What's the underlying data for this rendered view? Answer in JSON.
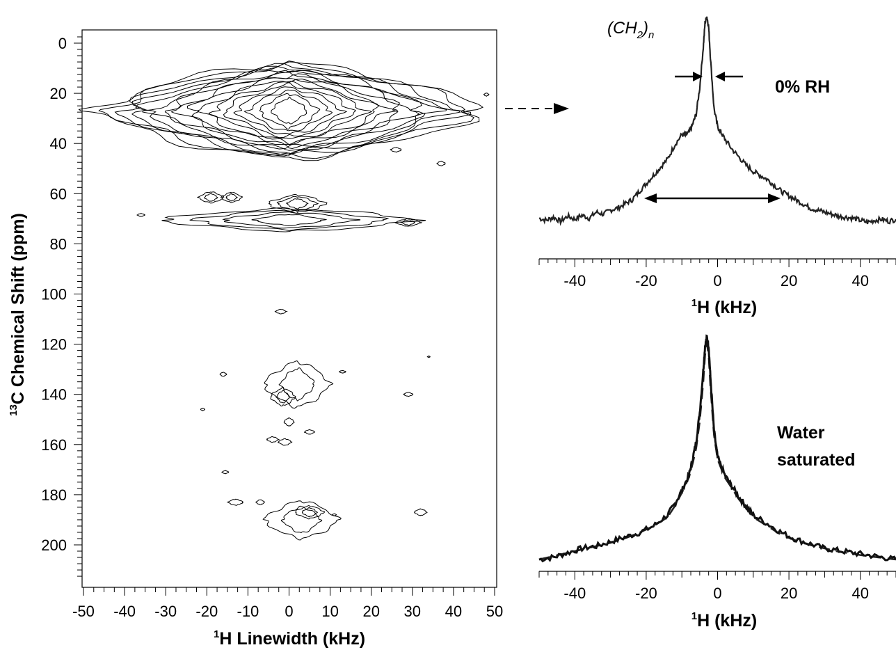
{
  "chart_data": [
    {
      "type": "contour",
      "xlabel_sup": "1",
      "xlabel": "H Linewidth (kHz)",
      "ylabel_sup": "13",
      "ylabel": "C Chemical Shift (ppm)",
      "xlim": [
        -50,
        50
      ],
      "ylim": [
        214,
        -5
      ],
      "y_inverted": true,
      "xticks": [
        -50,
        -40,
        -30,
        -20,
        -10,
        0,
        10,
        20,
        30,
        40,
        50
      ],
      "xtick_labels": [
        "-50",
        "-40",
        "-30",
        "-20",
        "-10",
        "0",
        "10",
        "20",
        "30",
        "40",
        "50"
      ],
      "yticks": [
        0,
        20,
        40,
        60,
        80,
        100,
        120,
        140,
        160,
        180,
        200
      ],
      "ytick_labels": [
        "0",
        "20",
        "40",
        "60",
        "80",
        "100",
        "120",
        "140",
        "160",
        "180",
        "200"
      ],
      "peaks": [
        {
          "x": 0,
          "y": 27,
          "rx": 47,
          "ry": 19,
          "levels": 16
        },
        {
          "x": -19,
          "y": 61.5,
          "rx": 3,
          "ry": 2.2,
          "levels": 2
        },
        {
          "x": -14,
          "y": 61.5,
          "rx": 2.5,
          "ry": 2,
          "levels": 2
        },
        {
          "x": 2,
          "y": 64,
          "rx": 7,
          "ry": 3.5,
          "levels": 3
        },
        {
          "x": 0,
          "y": 70.5,
          "rx": 31,
          "ry": 4.5,
          "levels": 4
        },
        {
          "x": 29,
          "y": 71.5,
          "rx": 3,
          "ry": 1.5,
          "levels": 2
        },
        {
          "x": -36,
          "y": 68.5,
          "rx": 0.9,
          "ry": 0.6,
          "levels": 1
        },
        {
          "x": 37,
          "y": 48,
          "rx": 1,
          "ry": 0.9,
          "levels": 1
        },
        {
          "x": 26,
          "y": 42.5,
          "rx": 1.3,
          "ry": 0.9,
          "levels": 1
        },
        {
          "x": 48,
          "y": 20.5,
          "rx": 0.6,
          "ry": 0.6,
          "levels": 1
        },
        {
          "x": -2,
          "y": 107,
          "rx": 1.3,
          "ry": 0.9,
          "levels": 1
        },
        {
          "x": 2,
          "y": 136,
          "rx": 8,
          "ry": 9,
          "levels": 2
        },
        {
          "x": -1.5,
          "y": 141,
          "rx": 3,
          "ry": 3.5,
          "levels": 2
        },
        {
          "x": 0,
          "y": 151,
          "rx": 1.2,
          "ry": 1.6,
          "levels": 1
        },
        {
          "x": -16,
          "y": 132,
          "rx": 0.8,
          "ry": 0.8,
          "levels": 1
        },
        {
          "x": 13,
          "y": 131,
          "rx": 0.8,
          "ry": 0.5,
          "levels": 1
        },
        {
          "x": 29,
          "y": 140,
          "rx": 1.1,
          "ry": 0.8,
          "levels": 1
        },
        {
          "x": 34,
          "y": 125,
          "rx": 0.3,
          "ry": 0.3,
          "levels": 1
        },
        {
          "x": -21,
          "y": 146,
          "rx": 0.5,
          "ry": 0.5,
          "levels": 1
        },
        {
          "x": -4,
          "y": 158,
          "rx": 1.4,
          "ry": 1.1,
          "levels": 1
        },
        {
          "x": -1,
          "y": 159,
          "rx": 1.6,
          "ry": 1.3,
          "levels": 1
        },
        {
          "x": 5,
          "y": 155,
          "rx": 1.2,
          "ry": 0.9,
          "levels": 1
        },
        {
          "x": -15.5,
          "y": 171,
          "rx": 0.8,
          "ry": 0.6,
          "levels": 1
        },
        {
          "x": -13,
          "y": 183,
          "rx": 1.8,
          "ry": 1.2,
          "levels": 1
        },
        {
          "x": -7,
          "y": 183,
          "rx": 1,
          "ry": 1,
          "levels": 1
        },
        {
          "x": 3,
          "y": 190,
          "rx": 9,
          "ry": 7.5,
          "levels": 2
        },
        {
          "x": 5,
          "y": 187,
          "rx": 3.5,
          "ry": 2.5,
          "levels": 2
        },
        {
          "x": 32,
          "y": 187,
          "rx": 1.5,
          "ry": 1.3,
          "levels": 1
        },
        {
          "x": 11,
          "y": 188,
          "rx": 0.5,
          "ry": 0.4,
          "levels": 1
        }
      ]
    },
    {
      "type": "line",
      "condition_label": "0% RH",
      "peak_label_main": "(CH",
      "peak_label_sub": "2",
      "peak_label_close": ")",
      "peak_label_n": "n",
      "xlabel_sup": "1",
      "xlabel": "H (kHz)",
      "xlim": [
        -50,
        50
      ],
      "xticks": [
        -40,
        -20,
        0,
        20,
        40
      ],
      "xtick_labels": [
        "-40",
        "-20",
        "0",
        "20",
        "40"
      ],
      "series": [
        {
          "style": "solid",
          "x": [
            -50,
            -48,
            -46,
            -44,
            -42,
            -40,
            -38,
            -36,
            -34,
            -32,
            -30,
            -28,
            -26,
            -24,
            -22,
            -20,
            -18,
            -16,
            -14,
            -12,
            -10,
            -9,
            -8,
            -7,
            -6,
            -5,
            -4,
            -3.5,
            -3,
            -2.5,
            -2,
            -1,
            0,
            1,
            2,
            4,
            6,
            8,
            10,
            12,
            14,
            16,
            18,
            20,
            22,
            24,
            26,
            28,
            30,
            32,
            34,
            36,
            38,
            40,
            42,
            44,
            46,
            48,
            50
          ],
          "y": [
            0.01,
            0.0,
            0.015,
            -0.005,
            0.02,
            0.005,
            0.025,
            0.01,
            0.04,
            0.03,
            0.05,
            0.06,
            0.08,
            0.1,
            0.14,
            0.18,
            0.22,
            0.26,
            0.3,
            0.37,
            0.42,
            0.42,
            0.43,
            0.47,
            0.52,
            0.65,
            0.85,
            0.97,
            1.0,
            0.95,
            0.8,
            0.55,
            0.46,
            0.43,
            0.4,
            0.35,
            0.31,
            0.27,
            0.24,
            0.22,
            0.2,
            0.17,
            0.14,
            0.12,
            0.1,
            0.08,
            0.06,
            0.05,
            0.04,
            0.03,
            0.02,
            0.015,
            0.01,
            0.0,
            -0.01,
            0.0,
            0.005,
            -0.005,
            0.005
          ]
        }
      ],
      "ylim": [
        -0.08,
        1.04
      ]
    },
    {
      "type": "line",
      "condition_label_line1": "Water",
      "condition_label_line2": "saturated",
      "xlabel_sup": "1",
      "xlabel": "H (kHz)",
      "xlim": [
        -50,
        50
      ],
      "xticks": [
        -40,
        -20,
        0,
        20,
        40
      ],
      "xtick_labels": [
        "-40",
        "-20",
        "0",
        "20",
        "40"
      ],
      "series": [
        {
          "style": "solid",
          "x": [
            -50,
            -46,
            -42,
            -38,
            -34,
            -30,
            -26,
            -22,
            -18,
            -14,
            -12,
            -10,
            -8,
            -7,
            -6,
            -5,
            -4,
            -3.5,
            -3,
            -2.5,
            -2,
            -1,
            0,
            2,
            4,
            6,
            8,
            10,
            14,
            18,
            22,
            26,
            30,
            34,
            38,
            42,
            46,
            50
          ],
          "y": [
            0.0,
            0.01,
            0.03,
            0.05,
            0.06,
            0.08,
            0.1,
            0.12,
            0.15,
            0.2,
            0.25,
            0.31,
            0.38,
            0.45,
            0.53,
            0.66,
            0.85,
            0.96,
            1.0,
            0.96,
            0.82,
            0.58,
            0.46,
            0.38,
            0.33,
            0.28,
            0.24,
            0.2,
            0.16,
            0.12,
            0.09,
            0.07,
            0.05,
            0.04,
            0.03,
            0.02,
            0.01,
            0.0
          ]
        },
        {
          "style": "dashed",
          "x": [
            -50,
            -46,
            -42,
            -38,
            -34,
            -30,
            -26,
            -22,
            -18,
            -14,
            -12,
            -10,
            -8,
            -7,
            -6,
            -5,
            -4,
            -3.5,
            -3,
            -2.5,
            -2,
            -1,
            0,
            2,
            4,
            6,
            8,
            10,
            14,
            18,
            22,
            26,
            30,
            34,
            38,
            42,
            46,
            50
          ],
          "y": [
            0.0,
            0.015,
            0.03,
            0.045,
            0.06,
            0.075,
            0.095,
            0.12,
            0.15,
            0.19,
            0.24,
            0.3,
            0.37,
            0.43,
            0.5,
            0.62,
            0.8,
            0.92,
            0.97,
            0.92,
            0.78,
            0.56,
            0.45,
            0.37,
            0.32,
            0.27,
            0.23,
            0.19,
            0.15,
            0.11,
            0.085,
            0.065,
            0.05,
            0.035,
            0.025,
            0.015,
            0.008,
            0.0
          ]
        }
      ],
      "ylim": [
        -0.05,
        1.02
      ]
    }
  ]
}
